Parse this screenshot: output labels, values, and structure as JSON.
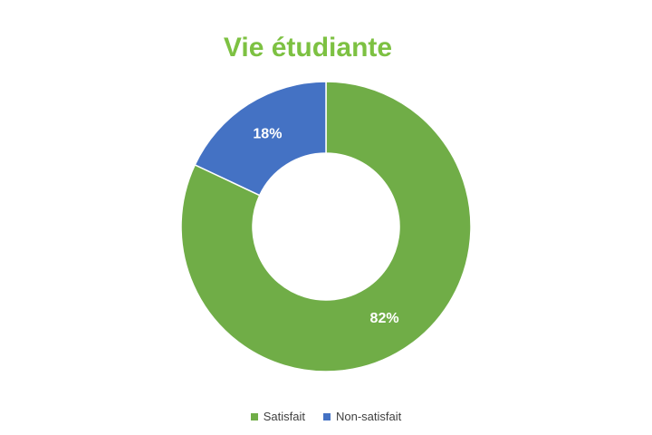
{
  "chart_data": {
    "type": "pie",
    "variant": "donut",
    "title": "Vie étudiante",
    "title_color": "#7dc142",
    "categories": [
      "Satisfait",
      "Non-satisfait"
    ],
    "values": [
      82,
      18
    ],
    "labels": [
      "82%",
      "18%"
    ],
    "colors": [
      "#70ad47",
      "#4472c4"
    ],
    "legend_position": "bottom"
  }
}
